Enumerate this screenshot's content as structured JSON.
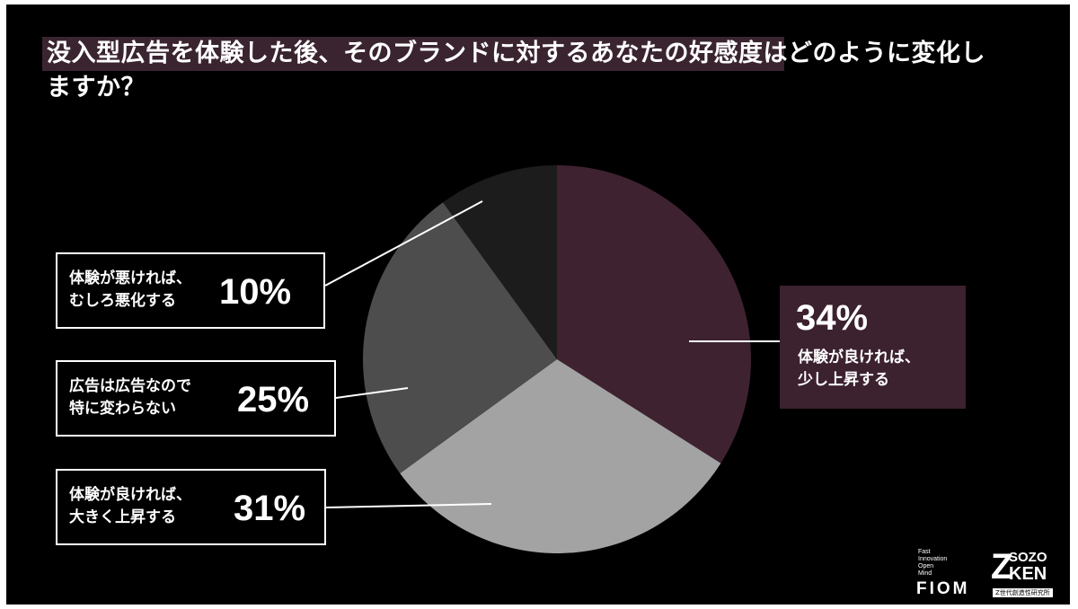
{
  "title": "没入型広告を体験した後、そのブランドに対するあなたの好感度はどのように変化しますか？",
  "colors": {
    "background": "#000000",
    "title_highlight": "#3a2430",
    "slice_improve_slightly": "#3e2230",
    "slice_improve_greatly": "#a3a3a3",
    "slice_no_change": "#4d4d4d",
    "slice_worsen": "#1c1c1c",
    "leader_line": "#ffffff"
  },
  "chart_data": {
    "type": "pie",
    "title": "没入型広告を体験した後、そのブランドに対するあなたの好感度はどのように変化しますか？",
    "start": "12 o'clock",
    "direction": "clockwise",
    "slices": [
      {
        "label": "体験が良ければ、\n少し上昇する",
        "value": 34,
        "display": "34%"
      },
      {
        "label": "体験が良ければ、\n大きく上昇する",
        "value": 31,
        "display": "31%"
      },
      {
        "label": "広告は広告なので\n特に変わらない",
        "value": 25,
        "display": "25%"
      },
      {
        "label": "体験が悪ければ、\nむしろ悪化する",
        "value": 10,
        "display": "10%"
      }
    ]
  },
  "logos": {
    "fiom_words": "Fast\nInnovation\nOpen\nMind",
    "fiom": "FIOM",
    "sozo_mark": "Z",
    "sozo_line1": "SOZO",
    "sozo_line2": "KEN",
    "sozo_sub": "Z世代創造性研究所"
  }
}
